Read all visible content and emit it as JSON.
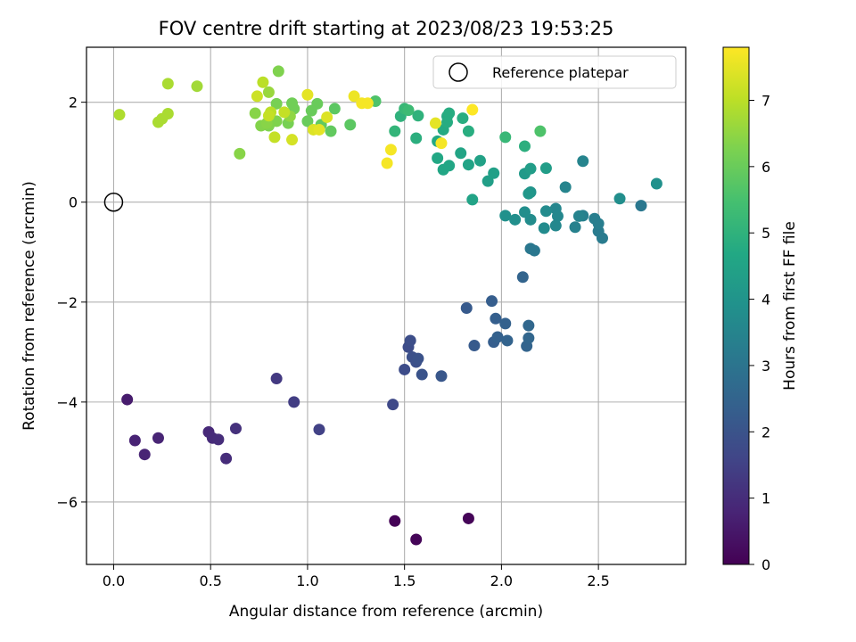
{
  "chart_data": {
    "type": "scatter",
    "title": "FOV centre drift starting at 2023/08/23 19:53:25",
    "xlabel": "Angular distance from reference (arcmin)",
    "ylabel": "Rotation from reference (arcmin)",
    "xlim": [
      -0.14,
      2.95
    ],
    "ylim": [
      -7.25,
      3.1
    ],
    "xticks": [
      0.0,
      0.5,
      1.0,
      1.5,
      2.0,
      2.5
    ],
    "xtick_labels": [
      "0.0",
      "0.5",
      "1.0",
      "1.5",
      "2.0",
      "2.5"
    ],
    "yticks": [
      -6,
      -4,
      -2,
      0,
      2
    ],
    "ytick_labels": [
      "−6",
      "−4",
      "−2",
      "0",
      "2"
    ],
    "grid": true,
    "legend": {
      "position": "top-right",
      "entries": [
        "Reference platepar"
      ]
    },
    "reference_point": {
      "x": 0.0,
      "y": 0.0,
      "label": "Reference platepar"
    },
    "colorbar": {
      "label": "Hours from first FF file",
      "min": 0,
      "max": 7.8,
      "ticks": [
        0,
        1,
        2,
        3,
        4,
        5,
        6,
        7
      ],
      "colormap": "viridis"
    },
    "points": [
      {
        "x": 1.45,
        "y": -6.38,
        "c": 0.05
      },
      {
        "x": 1.56,
        "y": -6.75,
        "c": 0.1
      },
      {
        "x": 1.83,
        "y": -6.33,
        "c": 0.1
      },
      {
        "x": 0.07,
        "y": -3.95,
        "c": 0.6
      },
      {
        "x": 0.11,
        "y": -4.77,
        "c": 0.75
      },
      {
        "x": 0.16,
        "y": -5.05,
        "c": 0.8
      },
      {
        "x": 0.23,
        "y": -4.72,
        "c": 0.8
      },
      {
        "x": 0.49,
        "y": -4.6,
        "c": 0.9
      },
      {
        "x": 0.51,
        "y": -4.72,
        "c": 0.95
      },
      {
        "x": 0.54,
        "y": -4.75,
        "c": 1.0
      },
      {
        "x": 0.58,
        "y": -5.13,
        "c": 1.0
      },
      {
        "x": 0.63,
        "y": -4.53,
        "c": 1.1
      },
      {
        "x": 0.84,
        "y": -3.53,
        "c": 1.3
      },
      {
        "x": 0.93,
        "y": -4.0,
        "c": 1.4
      },
      {
        "x": 1.06,
        "y": -4.55,
        "c": 1.5
      },
      {
        "x": 1.44,
        "y": -4.05,
        "c": 1.7
      },
      {
        "x": 1.5,
        "y": -3.35,
        "c": 1.8
      },
      {
        "x": 1.52,
        "y": -2.9,
        "c": 1.8
      },
      {
        "x": 1.53,
        "y": -2.77,
        "c": 1.85
      },
      {
        "x": 1.54,
        "y": -3.1,
        "c": 1.9
      },
      {
        "x": 1.56,
        "y": -3.2,
        "c": 1.9
      },
      {
        "x": 1.57,
        "y": -3.13,
        "c": 1.95
      },
      {
        "x": 1.59,
        "y": -3.45,
        "c": 2.0
      },
      {
        "x": 1.69,
        "y": -3.48,
        "c": 2.1
      },
      {
        "x": 1.82,
        "y": -2.12,
        "c": 2.2
      },
      {
        "x": 1.86,
        "y": -2.87,
        "c": 2.2
      },
      {
        "x": 1.95,
        "y": -1.98,
        "c": 2.3
      },
      {
        "x": 1.96,
        "y": -2.8,
        "c": 2.3
      },
      {
        "x": 1.97,
        "y": -2.33,
        "c": 2.35
      },
      {
        "x": 1.98,
        "y": -2.7,
        "c": 2.4
      },
      {
        "x": 2.02,
        "y": -2.43,
        "c": 2.4
      },
      {
        "x": 2.03,
        "y": -2.77,
        "c": 2.45
      },
      {
        "x": 2.11,
        "y": -1.5,
        "c": 2.5
      },
      {
        "x": 2.13,
        "y": -2.88,
        "c": 2.5
      },
      {
        "x": 2.14,
        "y": -2.72,
        "c": 2.55
      },
      {
        "x": 2.14,
        "y": -2.47,
        "c": 2.6
      },
      {
        "x": 2.15,
        "y": -0.93,
        "c": 3.1
      },
      {
        "x": 2.17,
        "y": -0.97,
        "c": 3.1
      },
      {
        "x": 2.72,
        "y": -0.07,
        "c": 3.1
      },
      {
        "x": 2.52,
        "y": -0.72,
        "c": 3.2
      },
      {
        "x": 2.5,
        "y": -0.58,
        "c": 3.2
      },
      {
        "x": 2.5,
        "y": -0.43,
        "c": 3.3
      },
      {
        "x": 2.48,
        "y": -0.33,
        "c": 3.3
      },
      {
        "x": 2.42,
        "y": -0.27,
        "c": 3.35
      },
      {
        "x": 2.38,
        "y": -0.5,
        "c": 3.4
      },
      {
        "x": 2.4,
        "y": -0.28,
        "c": 3.45
      },
      {
        "x": 2.42,
        "y": 0.82,
        "c": 3.5
      },
      {
        "x": 2.33,
        "y": 0.3,
        "c": 3.5
      },
      {
        "x": 2.28,
        "y": -0.13,
        "c": 3.55
      },
      {
        "x": 2.29,
        "y": -0.28,
        "c": 3.6
      },
      {
        "x": 2.28,
        "y": -0.47,
        "c": 3.6
      },
      {
        "x": 2.22,
        "y": -0.52,
        "c": 3.7
      },
      {
        "x": 2.23,
        "y": -0.18,
        "c": 3.7
      },
      {
        "x": 2.15,
        "y": -0.35,
        "c": 3.75
      },
      {
        "x": 2.12,
        "y": -0.2,
        "c": 3.8
      },
      {
        "x": 2.07,
        "y": -0.35,
        "c": 3.85
      },
      {
        "x": 2.02,
        "y": -0.27,
        "c": 3.9
      },
      {
        "x": 2.8,
        "y": 0.37,
        "c": 3.9
      },
      {
        "x": 2.61,
        "y": 0.07,
        "c": 3.8
      },
      {
        "x": 2.15,
        "y": 0.2,
        "c": 4.0
      },
      {
        "x": 2.14,
        "y": 0.17,
        "c": 4.1
      },
      {
        "x": 2.12,
        "y": 0.57,
        "c": 4.2
      },
      {
        "x": 2.15,
        "y": 0.67,
        "c": 4.3
      },
      {
        "x": 2.23,
        "y": 0.68,
        "c": 4.3
      },
      {
        "x": 1.93,
        "y": 0.42,
        "c": 4.35
      },
      {
        "x": 1.96,
        "y": 0.58,
        "c": 4.4
      },
      {
        "x": 1.89,
        "y": 0.83,
        "c": 4.45
      },
      {
        "x": 1.85,
        "y": 0.05,
        "c": 4.5
      },
      {
        "x": 1.83,
        "y": 0.75,
        "c": 4.5
      },
      {
        "x": 1.79,
        "y": 0.98,
        "c": 4.55
      },
      {
        "x": 1.73,
        "y": 0.73,
        "c": 4.6
      },
      {
        "x": 1.7,
        "y": 0.65,
        "c": 4.6
      },
      {
        "x": 1.67,
        "y": 0.88,
        "c": 4.65
      },
      {
        "x": 1.67,
        "y": 1.22,
        "c": 4.7
      },
      {
        "x": 1.7,
        "y": 1.45,
        "c": 4.75
      },
      {
        "x": 1.72,
        "y": 1.72,
        "c": 4.75
      },
      {
        "x": 1.73,
        "y": 1.78,
        "c": 4.8
      },
      {
        "x": 1.72,
        "y": 1.6,
        "c": 4.8
      },
      {
        "x": 1.8,
        "y": 1.68,
        "c": 4.85
      },
      {
        "x": 1.83,
        "y": 1.42,
        "c": 4.85
      },
      {
        "x": 2.12,
        "y": 1.12,
        "c": 4.9
      },
      {
        "x": 2.02,
        "y": 1.3,
        "c": 5.2
      },
      {
        "x": 1.56,
        "y": 1.28,
        "c": 4.9
      },
      {
        "x": 1.57,
        "y": 1.73,
        "c": 5.0
      },
      {
        "x": 1.48,
        "y": 1.72,
        "c": 5.0
      },
      {
        "x": 1.45,
        "y": 1.42,
        "c": 5.1
      },
      {
        "x": 1.5,
        "y": 1.87,
        "c": 5.2
      },
      {
        "x": 1.52,
        "y": 1.84,
        "c": 5.3
      },
      {
        "x": 2.2,
        "y": 1.42,
        "c": 5.6
      },
      {
        "x": 1.35,
        "y": 2.02,
        "c": 5.6
      },
      {
        "x": 1.22,
        "y": 1.55,
        "c": 5.8
      },
      {
        "x": 1.14,
        "y": 1.87,
        "c": 5.8
      },
      {
        "x": 1.12,
        "y": 1.42,
        "c": 5.9
      },
      {
        "x": 1.07,
        "y": 1.55,
        "c": 5.9
      },
      {
        "x": 1.05,
        "y": 1.97,
        "c": 6.0
      },
      {
        "x": 1.02,
        "y": 1.83,
        "c": 6.0
      },
      {
        "x": 1.0,
        "y": 1.62,
        "c": 6.0
      },
      {
        "x": 0.92,
        "y": 1.98,
        "c": 6.1
      },
      {
        "x": 0.93,
        "y": 1.87,
        "c": 6.1
      },
      {
        "x": 0.9,
        "y": 1.58,
        "c": 6.2
      },
      {
        "x": 0.84,
        "y": 1.97,
        "c": 6.2
      },
      {
        "x": 0.84,
        "y": 1.62,
        "c": 6.3
      },
      {
        "x": 0.8,
        "y": 1.53,
        "c": 6.3
      },
      {
        "x": 0.76,
        "y": 1.53,
        "c": 6.35
      },
      {
        "x": 0.79,
        "y": 1.58,
        "c": 6.4
      },
      {
        "x": 0.73,
        "y": 1.78,
        "c": 6.4
      },
      {
        "x": 0.85,
        "y": 2.62,
        "c": 6.3
      },
      {
        "x": 0.91,
        "y": 1.72,
        "c": 6.5
      },
      {
        "x": 0.65,
        "y": 0.97,
        "c": 6.4
      },
      {
        "x": 0.8,
        "y": 2.2,
        "c": 6.6
      },
      {
        "x": 0.43,
        "y": 2.32,
        "c": 6.7
      },
      {
        "x": 0.28,
        "y": 2.37,
        "c": 6.8
      },
      {
        "x": 0.28,
        "y": 1.77,
        "c": 6.8
      },
      {
        "x": 0.25,
        "y": 1.67,
        "c": 6.8
      },
      {
        "x": 0.23,
        "y": 1.6,
        "c": 6.8
      },
      {
        "x": 0.03,
        "y": 1.75,
        "c": 6.85
      },
      {
        "x": 0.77,
        "y": 2.4,
        "c": 7.0
      },
      {
        "x": 0.81,
        "y": 1.8,
        "c": 7.0
      },
      {
        "x": 0.8,
        "y": 1.73,
        "c": 7.1
      },
      {
        "x": 0.83,
        "y": 1.3,
        "c": 7.1
      },
      {
        "x": 0.88,
        "y": 1.8,
        "c": 7.1
      },
      {
        "x": 0.92,
        "y": 1.25,
        "c": 7.3
      },
      {
        "x": 0.74,
        "y": 2.12,
        "c": 7.2
      },
      {
        "x": 1.03,
        "y": 1.45,
        "c": 7.4
      },
      {
        "x": 1.06,
        "y": 1.45,
        "c": 7.5
      },
      {
        "x": 1.1,
        "y": 1.7,
        "c": 7.4
      },
      {
        "x": 1.0,
        "y": 2.15,
        "c": 7.5
      },
      {
        "x": 1.24,
        "y": 2.12,
        "c": 7.6
      },
      {
        "x": 1.28,
        "y": 1.98,
        "c": 7.7
      },
      {
        "x": 1.31,
        "y": 1.98,
        "c": 7.7
      },
      {
        "x": 1.41,
        "y": 0.78,
        "c": 7.7
      },
      {
        "x": 1.43,
        "y": 1.05,
        "c": 7.7
      },
      {
        "x": 1.66,
        "y": 1.58,
        "c": 7.5
      },
      {
        "x": 1.69,
        "y": 1.18,
        "c": 7.7
      },
      {
        "x": 1.85,
        "y": 1.85,
        "c": 7.8
      }
    ]
  }
}
